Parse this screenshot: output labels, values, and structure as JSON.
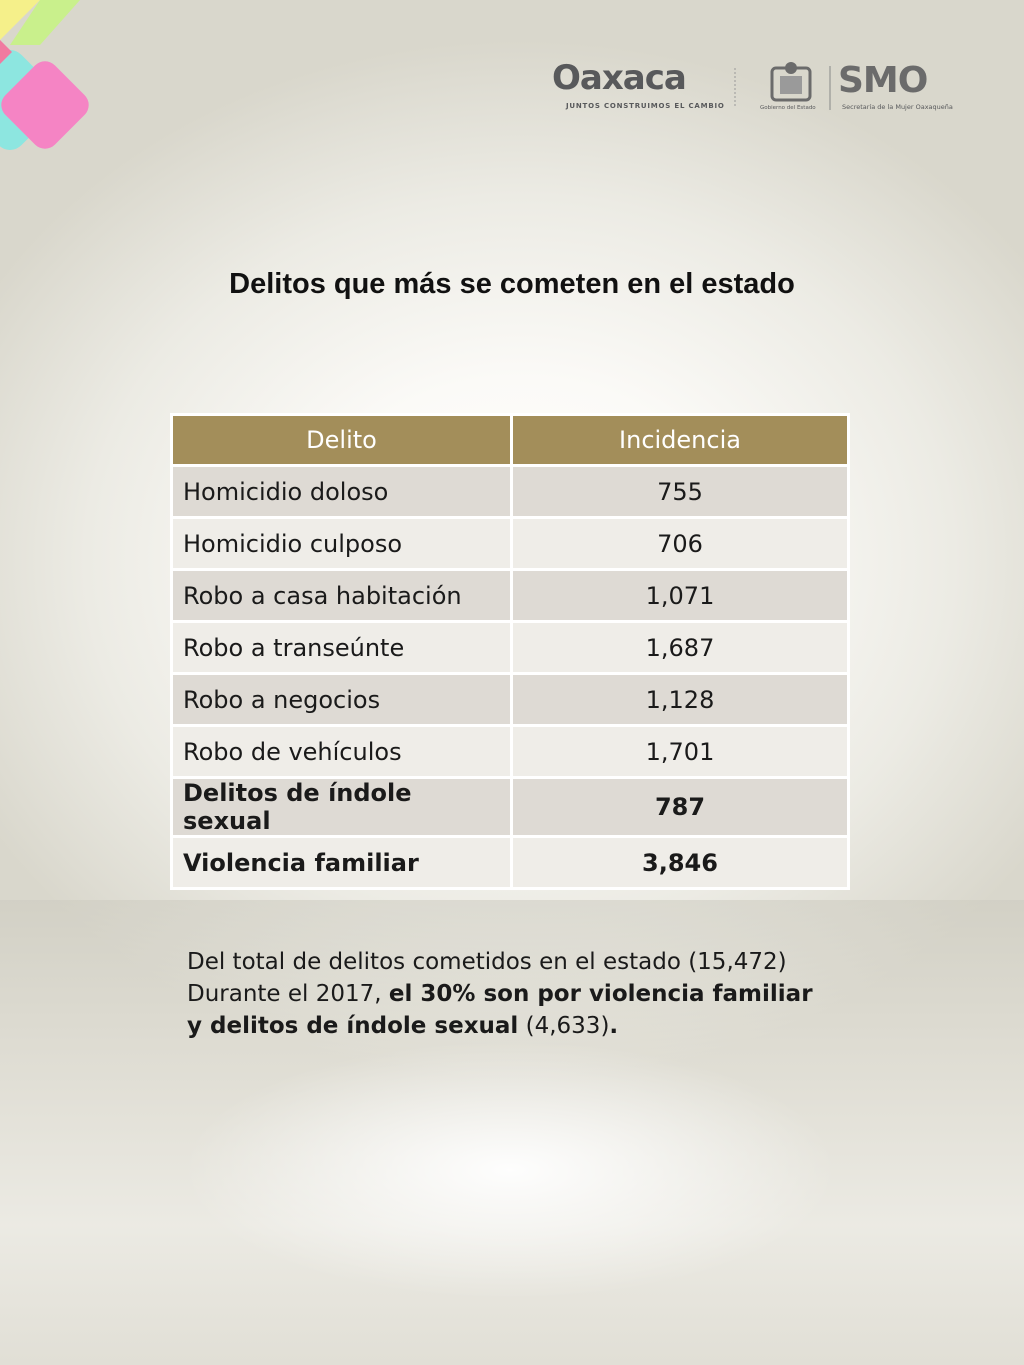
{
  "header": {
    "logo_oaxaca": "Oaxaca",
    "logo_oaxaca_tagline": "JUNTOS CONSTRUIMOS EL CAMBIO",
    "logo_gobierno": "Gobierno del Estado",
    "logo_smo": "SMO",
    "logo_smo_tagline": "Secretaría de la Mujer Oaxaqueña"
  },
  "title": "Delitos que más se cometen en el estado",
  "table": {
    "headers": [
      "Delito",
      "Incidencia"
    ],
    "rows": [
      {
        "delito": "Homicidio doloso",
        "incidencia": "755"
      },
      {
        "delito": "Homicidio culposo",
        "incidencia": "706"
      },
      {
        "delito": "Robo a casa habitación",
        "incidencia": "1,071"
      },
      {
        "delito": "Robo a transeúnte",
        "incidencia": "1,687"
      },
      {
        "delito": "Robo a negocios",
        "incidencia": "1,128"
      },
      {
        "delito": "Robo de vehículos",
        "incidencia": "1,701"
      },
      {
        "delito": "Delitos de índole sexual",
        "incidencia": "787"
      },
      {
        "delito": "Violencia familiar",
        "incidencia": "3,846"
      }
    ]
  },
  "note": {
    "line1": "Del total de delitos cometidos en el estado (15,472)",
    "line2_plain": "Durante el 2017, ",
    "line2_bold": "el 30% son por violencia familiar",
    "line3_bold": "y delitos de índole sexual",
    "line3_plain": " (4,633)",
    "line3_end": "."
  },
  "colors": {
    "header_bg": "#a38e5a",
    "row_dark": "#dedad4",
    "row_light": "#efede8"
  }
}
